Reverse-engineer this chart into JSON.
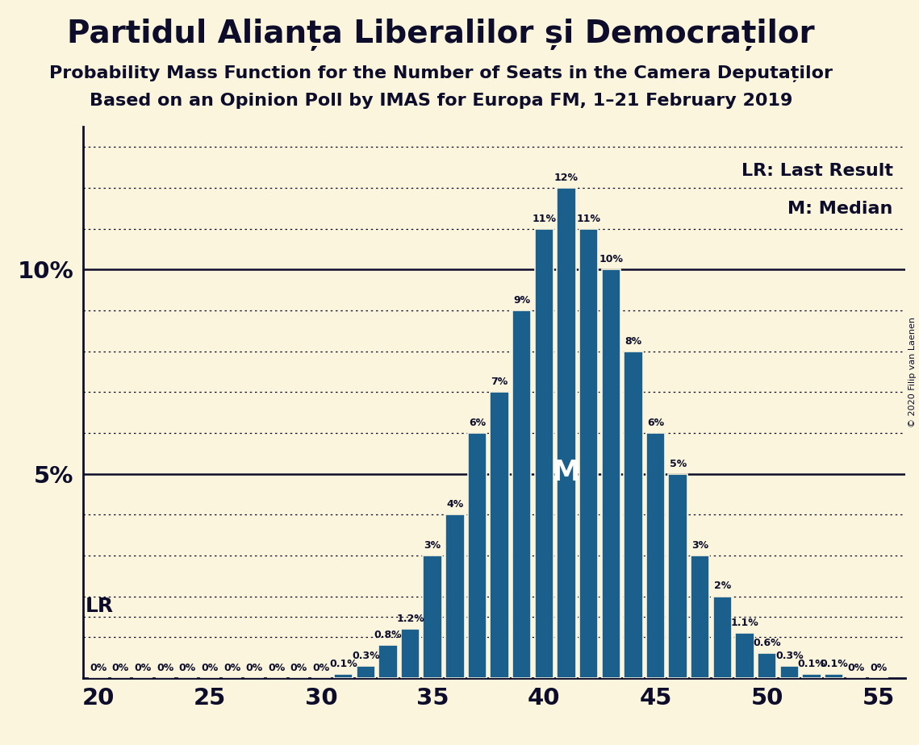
{
  "title": "Partidul Alianța Liberalilor și Democraților",
  "subtitle1": "Probability Mass Function for the Number of Seats in the Camera Deputaților",
  "subtitle2": "Based on an Opinion Poll by IMAS for Europa FM, 1–21 February 2019",
  "copyright": "© 2020 Filip van Laenen",
  "legend_lr": "LR: Last Result",
  "legend_m": "M: Median",
  "lr_label": "LR",
  "median_label": "M",
  "bar_color": "#1b5f8c",
  "background_color": "#faf5dc",
  "seats": [
    20,
    21,
    22,
    23,
    24,
    25,
    26,
    27,
    28,
    29,
    30,
    31,
    32,
    33,
    34,
    35,
    36,
    37,
    38,
    39,
    40,
    41,
    42,
    43,
    44,
    45,
    46,
    47,
    48,
    49,
    50,
    51,
    52,
    53,
    54,
    55
  ],
  "probabilities": [
    0.0,
    0.0,
    0.0,
    0.0,
    0.0,
    0.0,
    0.0,
    0.0,
    0.0,
    0.0,
    0.0,
    0.1,
    0.3,
    0.8,
    1.2,
    3.0,
    4.0,
    6.0,
    7.0,
    9.0,
    11.0,
    12.0,
    11.0,
    10.0,
    8.0,
    6.0,
    5.0,
    3.0,
    2.0,
    1.1,
    0.6,
    0.3,
    0.1,
    0.1,
    0.0,
    0.0
  ],
  "prob_labels": [
    "0%",
    "0%",
    "0%",
    "0%",
    "0%",
    "0%",
    "0%",
    "0%",
    "0%",
    "0%",
    "0%",
    "0.1%",
    "0.3%",
    "0.8%",
    "1.2%",
    "3%",
    "4%",
    "6%",
    "7%",
    "9%",
    "11%",
    "12%",
    "11%",
    "10%",
    "8%",
    "6%",
    "5%",
    "3%",
    "2%",
    "1.1%",
    "0.6%",
    "0.3%",
    "0.1%",
    "0.1%",
    "0%",
    "0%"
  ],
  "median_seat": 41,
  "xlim": [
    19.3,
    56.2
  ],
  "ylim": [
    0,
    13.5
  ],
  "xticks": [
    20,
    25,
    30,
    35,
    40,
    45,
    50,
    55
  ],
  "major_yticks": [
    5.0,
    10.0
  ],
  "dotted_yticks": [
    1.0,
    2.0,
    3.0,
    4.0,
    6.0,
    7.0,
    8.0,
    9.0,
    11.0,
    12.0,
    13.0
  ],
  "lr_line_y": 1.5,
  "title_fontsize": 28,
  "subtitle_fontsize": 16,
  "axis_fontsize": 21,
  "label_fontsize": 9,
  "bar_width": 0.85,
  "text_color": "#0d0d2b"
}
